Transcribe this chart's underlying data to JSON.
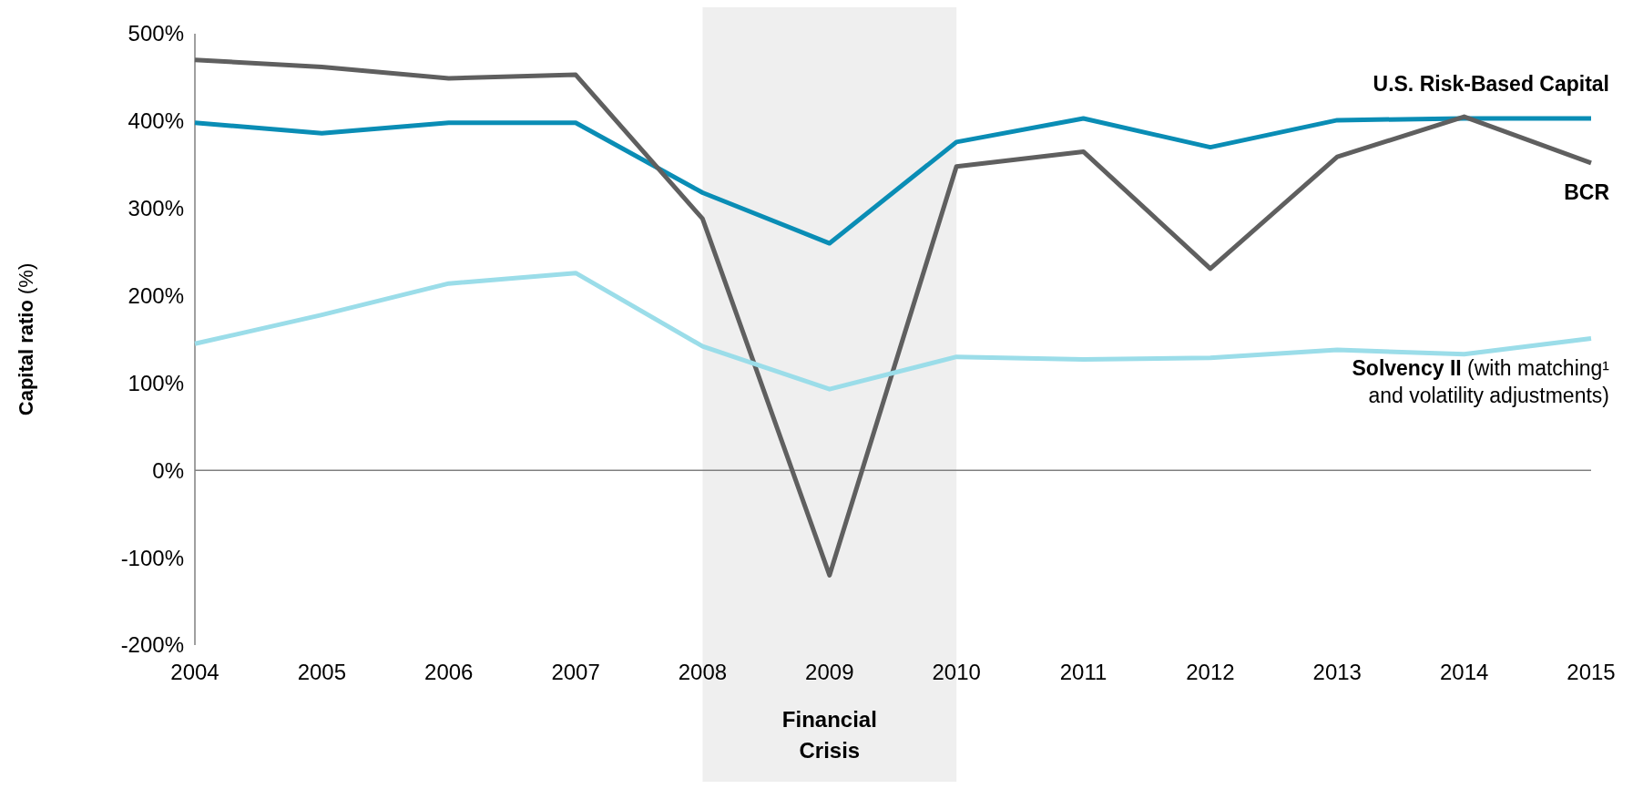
{
  "chart_data": {
    "type": "line",
    "ylabel": "Capital ratio (%)",
    "x": [
      2004,
      2005,
      2006,
      2007,
      2008,
      2009,
      2010,
      2011,
      2012,
      2013,
      2014,
      2015
    ],
    "xlim": [
      2004,
      2015
    ],
    "xticks": [
      2004,
      2005,
      2006,
      2007,
      2008,
      2009,
      2010,
      2011,
      2012,
      2013,
      2014,
      2015
    ],
    "ylim": [
      -200,
      500
    ],
    "yticks": [
      {
        "value": -200,
        "label": "-200%"
      },
      {
        "value": -100,
        "label": "-100%"
      },
      {
        "value": 0,
        "label": "0%"
      },
      {
        "value": 100,
        "label": "100%"
      },
      {
        "value": 200,
        "label": "200%"
      },
      {
        "value": 300,
        "label": "300%"
      },
      {
        "value": 400,
        "label": "400%"
      },
      {
        "value": 500,
        "label": "500%"
      }
    ],
    "series": [
      {
        "name": "U.S. Risk-Based Capital",
        "color": "#0a8db5",
        "values": [
          398,
          386,
          398,
          398,
          318,
          260,
          376,
          403,
          370,
          401,
          403,
          403
        ]
      },
      {
        "name": "BCR",
        "color": "#5f5f5f",
        "values": [
          470,
          462,
          449,
          453,
          288,
          -120,
          348,
          365,
          231,
          359,
          405,
          352
        ]
      },
      {
        "name": "Solvency II (with matching¹ and volatility adjustments)",
        "color": "#9bdde9",
        "values": [
          145,
          178,
          214,
          226,
          142,
          93,
          130,
          127,
          129,
          138,
          133,
          151
        ]
      }
    ],
    "bands": [
      {
        "axis": "x",
        "from": 2008,
        "to": 2010,
        "label": "Financial Crisis",
        "color": "#efefef"
      }
    ],
    "ref_lines": [
      {
        "axis": "y",
        "value": 0,
        "color": "#808080"
      }
    ],
    "grid": false,
    "marker": "none",
    "line_style": "solid"
  }
}
